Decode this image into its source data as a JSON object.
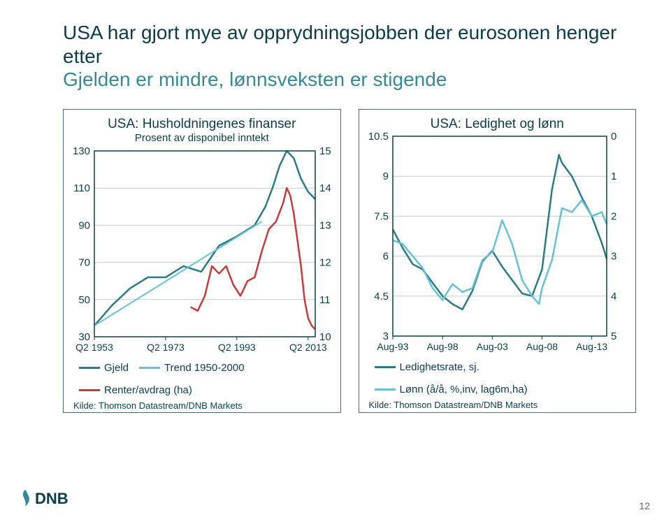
{
  "page_number": "12",
  "titles": {
    "line1": "USA har gjort mye av opprydningsjobben der eurosonen henger etter",
    "line2": "Gjelden er mindre, lønnsveksten er stigende"
  },
  "chart1": {
    "type": "line-dual-axis",
    "title": "USA: Husholdningenes finanser",
    "subtitle": "Prosent av disponibel inntekt",
    "source": "Kilde: Thomson Datastream/DNB Markets",
    "background_color": "#ffffff",
    "grid_color": "#c0cdd1",
    "frame_color": "#0a3d4a",
    "x": {
      "lim": [
        1953,
        2015
      ],
      "ticks": [
        1953,
        1973,
        1993,
        2013
      ],
      "labels": [
        "Q2 1953",
        "Q2 1973",
        "Q2 1993",
        "Q2 2013"
      ]
    },
    "y_left": {
      "lim": [
        30,
        130
      ],
      "ticks": [
        30,
        50,
        70,
        90,
        110,
        130
      ]
    },
    "y_right": {
      "lim": [
        10,
        15
      ],
      "ticks": [
        10,
        11,
        12,
        13,
        14,
        15
      ]
    },
    "series": [
      {
        "name": "Gjeld",
        "axis": "left",
        "color": "#2a7a88",
        "width": 2.5,
        "x": [
          1953,
          1958,
          1963,
          1968,
          1973,
          1978,
          1983,
          1988,
          1993,
          1998,
          2001,
          2003,
          2005,
          2007,
          2009,
          2011,
          2013,
          2015
        ],
        "y": [
          36,
          47,
          56,
          62,
          62,
          68,
          65,
          79,
          84,
          90,
          100,
          110,
          122,
          130,
          126,
          115,
          108,
          104
        ]
      },
      {
        "name": "Trend 1950-2000",
        "axis": "left",
        "color": "#65c2d6",
        "width": 2,
        "x": [
          1953,
          2000
        ],
        "y": [
          36,
          92
        ]
      },
      {
        "name": "Renter/avdrag (ha)",
        "axis": "right",
        "color": "#c73a3a",
        "width": 2.5,
        "x": [
          1980,
          1982,
          1984,
          1986,
          1988,
          1990,
          1992,
          1994,
          1996,
          1998,
          2000,
          2002,
          2004,
          2006,
          2007,
          2008,
          2009,
          2010,
          2011,
          2012,
          2013,
          2014,
          2015
        ],
        "y": [
          10.8,
          10.7,
          11.1,
          11.9,
          11.7,
          11.9,
          11.4,
          11.1,
          11.5,
          11.6,
          12.3,
          12.9,
          13.1,
          13.6,
          14.0,
          13.8,
          13.3,
          12.6,
          11.9,
          11.0,
          10.5,
          10.3,
          10.2
        ]
      }
    ]
  },
  "chart2": {
    "type": "line-dual-axis",
    "title": "USA: Ledighet og lønn",
    "source": "Kilde: Thomson Datastream/DNB Markets",
    "background_color": "#ffffff",
    "grid_color": "#c0cdd1",
    "frame_color": "#0a3d4a",
    "x": {
      "lim": [
        1993,
        2014.5
      ],
      "ticks": [
        1993,
        1998,
        2003,
        2008,
        2013
      ],
      "labels": [
        "Aug-93",
        "Aug-98",
        "Aug-03",
        "Aug-08",
        "Aug-13"
      ]
    },
    "y_left": {
      "lim": [
        3.0,
        10.5
      ],
      "ticks": [
        3.0,
        4.5,
        6.0,
        7.5,
        9.0,
        10.5
      ]
    },
    "y_right": {
      "lim": [
        5.0,
        0.0
      ],
      "ticks": [
        5.0,
        4.0,
        3.0,
        2.0,
        1.0,
        0.0
      ]
    },
    "series": [
      {
        "name": "Ledighetsrate, sj.",
        "axis": "left",
        "color": "#2a7a88",
        "width": 2.5,
        "x": [
          1993,
          1994,
          1995,
          1996,
          1997,
          1998,
          1999,
          2000,
          2001,
          2002,
          2003,
          2004,
          2005,
          2006,
          2007,
          2008,
          2009,
          2009.7,
          2010,
          2011,
          2012,
          2013,
          2014,
          2014.5
        ],
        "y": [
          7.0,
          6.3,
          5.7,
          5.5,
          5.0,
          4.5,
          4.2,
          4.0,
          4.7,
          5.8,
          6.2,
          5.6,
          5.1,
          4.6,
          4.5,
          5.5,
          8.5,
          9.8,
          9.5,
          9.0,
          8.2,
          7.5,
          6.5,
          5.9
        ]
      },
      {
        "name": "Lønn (å/å, %,inv, lag6m,ha)",
        "axis": "right",
        "color": "#65c2d6",
        "width": 2.5,
        "x": [
          1993,
          1994,
          1995,
          1996,
          1997,
          1998,
          1999,
          2000,
          2001,
          2002,
          2003,
          2004,
          2005,
          2006,
          2007,
          2007.7,
          2008,
          2009,
          2010,
          2011,
          2012,
          2013,
          2014,
          2014.5
        ],
        "y": [
          2.6,
          2.7,
          3.0,
          3.3,
          3.8,
          4.1,
          3.7,
          3.9,
          3.8,
          3.1,
          2.9,
          2.1,
          2.7,
          3.6,
          4.0,
          4.2,
          3.8,
          3.1,
          1.8,
          1.9,
          1.6,
          2.0,
          1.9,
          2.2
        ]
      }
    ]
  }
}
